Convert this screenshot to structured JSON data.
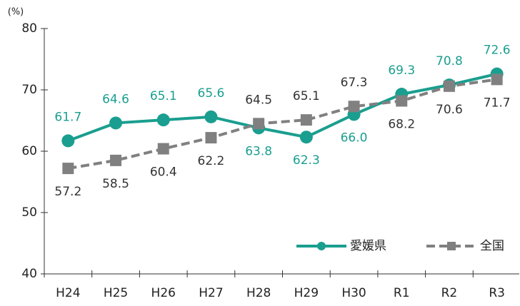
{
  "chart_data": {
    "type": "line",
    "y_unit_label": "(%)",
    "categories": [
      "H24",
      "H25",
      "H26",
      "H27",
      "H28",
      "H29",
      "H30",
      "R1",
      "R2",
      "R3"
    ],
    "series": [
      {
        "name": "愛媛県",
        "color": "#1a9e8f",
        "marker": "circle",
        "dashed": false,
        "values": [
          61.7,
          64.6,
          65.1,
          65.6,
          63.8,
          62.3,
          66.0,
          69.3,
          70.8,
          72.6
        ],
        "value_labels": [
          "61.7",
          "64.6",
          "65.1",
          "65.6",
          "63.8",
          "62.3",
          "66.0",
          "69.3",
          "70.8",
          "72.6"
        ]
      },
      {
        "name": "全国",
        "color": "#808080",
        "marker": "square",
        "dashed": true,
        "values": [
          57.2,
          58.5,
          60.4,
          62.2,
          64.5,
          65.1,
          67.3,
          68.2,
          70.6,
          71.7
        ],
        "value_labels": [
          "57.2",
          "58.5",
          "60.4",
          "62.2",
          "64.5",
          "65.1",
          "67.3",
          "68.2",
          "70.6",
          "71.7"
        ]
      }
    ],
    "ylim": [
      40,
      80
    ],
    "yticks": [
      40,
      50,
      60,
      70,
      80
    ],
    "grid": false,
    "legend": "lower right"
  }
}
